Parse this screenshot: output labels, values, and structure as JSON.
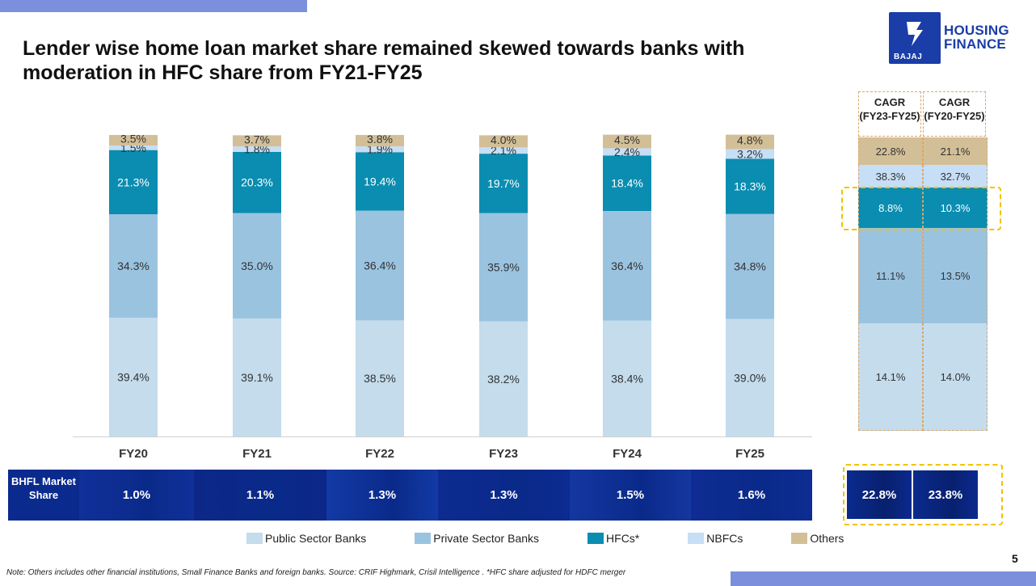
{
  "page": {
    "title": "Lender wise home loan market share remained skewed towards banks with moderation in HFC share from FY21-FY25",
    "page_number": "5",
    "note": "Note: Others includes other financial institutions, Small Finance Banks and foreign banks. Source: CRIF Highmark, Crisil Intelligence .  *HFC share adjusted for HDFC merger"
  },
  "logo": {
    "line1": "HOUSING",
    "line2": "FINANCE",
    "brand": "BAJAJ"
  },
  "colors": {
    "accent_bar": "#7b8fdc",
    "public": "#c4dcec",
    "private": "#9ac3e0",
    "hfc": "#0a8db0",
    "nbfc": "#c6def6",
    "others": "#d3bf97",
    "dark_navy": "#0b2a8e"
  },
  "chart_data": {
    "type": "bar",
    "stacked": true,
    "categories": [
      "FY20",
      "FY21",
      "FY22",
      "FY23",
      "FY24",
      "FY25"
    ],
    "ylim": [
      0,
      100
    ],
    "series": [
      {
        "name": "Public Sector Banks",
        "color": "#c4dcec",
        "values": [
          39.4,
          39.1,
          38.5,
          38.2,
          38.4,
          39.0
        ],
        "labels": [
          "39.4%",
          "39.1%",
          "38.5%",
          "38.2%",
          "38.4%",
          "39.0%"
        ]
      },
      {
        "name": "Private Sector Banks",
        "color": "#9ac3e0",
        "values": [
          34.3,
          35.0,
          36.4,
          35.9,
          36.4,
          34.8
        ],
        "labels": [
          "34.3%",
          "35.0%",
          "36.4%",
          "35.9%",
          "36.4%",
          "34.8%"
        ]
      },
      {
        "name": "HFCs*",
        "color": "#0a8db0",
        "values": [
          21.3,
          20.3,
          19.4,
          19.7,
          18.4,
          18.3
        ],
        "labels": [
          "21.3%",
          "20.3%",
          "19.4%",
          "19.7%",
          "18.4%",
          "18.3%"
        ]
      },
      {
        "name": "NBFCs",
        "color": "#c6def6",
        "values": [
          1.5,
          1.8,
          1.9,
          2.1,
          2.4,
          3.2
        ],
        "labels": [
          "1.5%",
          "1.8%",
          "1.9%",
          "2.1%",
          "2.4%",
          "3.2%"
        ]
      },
      {
        "name": "Others",
        "color": "#d3bf97",
        "values": [
          3.5,
          3.7,
          3.8,
          4.0,
          4.5,
          4.8
        ],
        "labels": [
          "3.5%",
          "3.7%",
          "3.8%",
          "4.0%",
          "4.5%",
          "4.8%"
        ]
      }
    ]
  },
  "bhfl": {
    "label": "BHFL Market Share",
    "values": [
      "1.0%",
      "1.1%",
      "1.3%",
      "1.3%",
      "1.5%",
      "1.6%"
    ]
  },
  "cagr": {
    "headers": [
      "CAGR (FY23-FY25)",
      "CAGR (FY20-FY25)"
    ],
    "others": [
      "22.8%",
      "21.1%"
    ],
    "nbfc": [
      "38.3%",
      "32.7%"
    ],
    "hfc": [
      "8.8%",
      "10.3%"
    ],
    "private": [
      "11.1%",
      "13.5%"
    ],
    "public": [
      "14.1%",
      "14.0%"
    ],
    "bhfl": [
      "22.8%",
      "23.8%"
    ]
  },
  "legend": [
    "Public Sector Banks",
    "Private Sector Banks",
    "HFCs*",
    "NBFCs",
    "Others"
  ]
}
